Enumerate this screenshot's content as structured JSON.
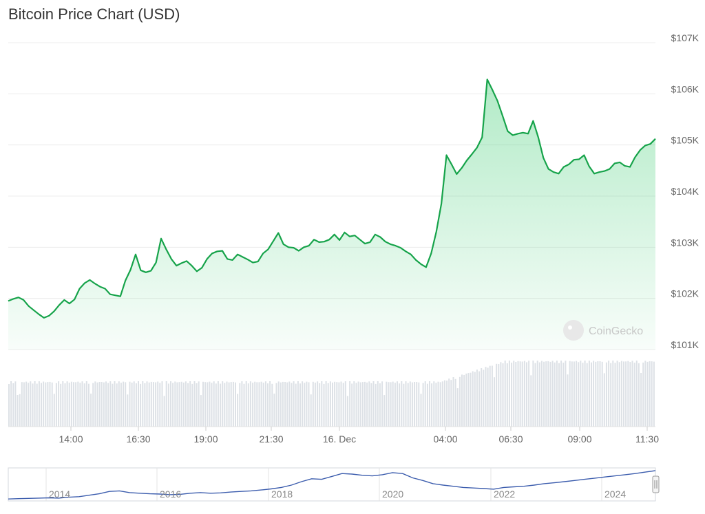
{
  "page_title": "Bitcoin Price Chart (USD)",
  "watermark": "CoinGecko",
  "colors": {
    "line": "#16a34a",
    "area": "#22c55e",
    "volume": "#dde1e6",
    "navigator": "#3b5cad"
  },
  "chart_data": [
    {
      "type": "area",
      "title": "Bitcoin Price Chart (USD)",
      "y_axis": {
        "position": "right",
        "min": 101000,
        "max": 107000,
        "ticks": [
          "$101K",
          "$102K",
          "$103K",
          "$104K",
          "$105K",
          "$106K",
          "$107K"
        ]
      },
      "x_axis": {
        "ticks": [
          "14:00",
          "16:30",
          "19:00",
          "21:30",
          "16. Dec",
          "04:00",
          "06:30",
          "09:00",
          "11:30"
        ]
      },
      "grid": true,
      "series": [
        {
          "values": [
            101950,
            101990,
            102020,
            101970,
            101850,
            101770,
            101690,
            101620,
            101660,
            101750,
            101870,
            101970,
            101900,
            101980,
            102190,
            102300,
            102360,
            102290,
            102230,
            102190,
            102080,
            102060,
            102040,
            102350,
            102560,
            102860,
            102550,
            102510,
            102540,
            102700,
            103170,
            102960,
            102770,
            102640,
            102690,
            102730,
            102640,
            102530,
            102600,
            102770,
            102880,
            102920,
            102930,
            102770,
            102750,
            102860,
            102810,
            102760,
            102700,
            102720,
            102880,
            102960,
            103120,
            103280,
            103060,
            103000,
            102990,
            102930,
            103000,
            103030,
            103150,
            103100,
            103110,
            103150,
            103250,
            103140,
            103290,
            103210,
            103230,
            103150,
            103070,
            103100,
            103250,
            103200,
            103110,
            103060,
            103030,
            102990,
            102920,
            102860,
            102750,
            102670,
            102610,
            102880,
            103300,
            103850,
            104800,
            104620,
            104430,
            104550,
            104700,
            104820,
            104950,
            105150,
            106280,
            106080,
            105860,
            105570,
            105270,
            105190,
            105220,
            105240,
            105220,
            105470,
            105150,
            104750,
            104530,
            104470,
            104440,
            104570,
            104620,
            104710,
            104720,
            104800,
            104580,
            104440,
            104470,
            104490,
            104530,
            104640,
            104660,
            104590,
            104570,
            104760,
            104900,
            104990,
            105020,
            105120
          ]
        }
      ],
      "volume": {
        "series": "24h volume bars (unlabeled)"
      }
    },
    {
      "type": "line",
      "role": "navigator",
      "x_axis": {
        "ticks": [
          "2014",
          "2016",
          "2018",
          "2020",
          "2022",
          "2024"
        ]
      },
      "series": [
        {
          "values": [
            0.02,
            0.03,
            0.04,
            0.05,
            0.06,
            0.05,
            0.08,
            0.1,
            0.15,
            0.2,
            0.28,
            0.3,
            0.24,
            0.22,
            0.2,
            0.19,
            0.17,
            0.18,
            0.22,
            0.24,
            0.22,
            0.23,
            0.26,
            0.28,
            0.3,
            0.33,
            0.37,
            0.42,
            0.5,
            0.62,
            0.72,
            0.7,
            0.8,
            0.9,
            0.88,
            0.84,
            0.82,
            0.86,
            0.93,
            0.9,
            0.75,
            0.66,
            0.55,
            0.5,
            0.46,
            0.42,
            0.4,
            0.38,
            0.36,
            0.42,
            0.44,
            0.46,
            0.5,
            0.55,
            0.58,
            0.62,
            0.66,
            0.7,
            0.74,
            0.78,
            0.82,
            0.86,
            0.9,
            0.95,
            1.0
          ]
        }
      ]
    }
  ]
}
